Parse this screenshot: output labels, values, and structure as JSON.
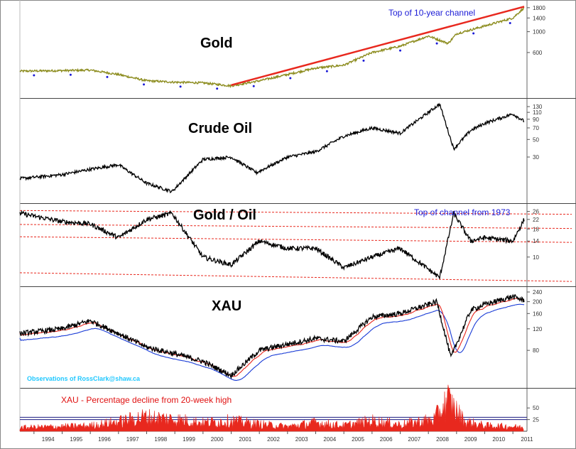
{
  "chart_data": [
    {
      "type": "line",
      "title": "Gold",
      "annotation": "Top of 10-year channel",
      "scale": "log",
      "y_ticks": [
        600,
        1000,
        1400,
        1800
      ],
      "colors": {
        "series": "#8c8c1e",
        "channel": "#e8281e",
        "markers": "#1a1ad6"
      },
      "x": [
        1993.5,
        1995,
        1996,
        1997,
        1998,
        1999,
        2000,
        2001,
        2002,
        2003,
        2004,
        2005,
        2006,
        2007,
        2008,
        2008.7,
        2009,
        2010,
        2011,
        2011.4
      ],
      "values": [
        380,
        385,
        390,
        350,
        300,
        290,
        285,
        265,
        300,
        350,
        410,
        440,
        600,
        700,
        900,
        750,
        950,
        1150,
        1400,
        1800
      ],
      "channel_line": {
        "x": [
          2001,
          2011.4
        ],
        "y": [
          270,
          1850
        ]
      }
    },
    {
      "type": "line",
      "title": "Crude Oil",
      "scale": "log",
      "y_ticks": [
        30,
        50,
        70,
        90,
        110,
        130
      ],
      "colors": {
        "series": "#000000"
      },
      "x": [
        1993.5,
        1995,
        1996,
        1997,
        1998,
        1998.9,
        2000,
        2001,
        2001.9,
        2003,
        2004,
        2005,
        2006,
        2007,
        2008.4,
        2008.9,
        2009.5,
        2010,
        2011,
        2011.4
      ],
      "values": [
        16,
        18,
        21,
        24,
        14,
        11,
        28,
        30,
        19,
        30,
        35,
        55,
        70,
        60,
        140,
        38,
        65,
        80,
        105,
        85
      ]
    },
    {
      "type": "line",
      "title": "Gold / Oil",
      "annotation": "Top of channel from 1973",
      "scale": "log",
      "y_ticks": [
        10,
        14,
        18,
        22,
        26
      ],
      "colors": {
        "series": "#000000",
        "channels": "#e8281e"
      },
      "x": [
        1993.5,
        1995,
        1996,
        1997,
        1998,
        1998.9,
        2000,
        2001,
        2002,
        2003,
        2004,
        2005,
        2006,
        2007,
        2008.4,
        2008.9,
        2009.5,
        2010,
        2011,
        2011.4
      ],
      "values": [
        25,
        21,
        20,
        15,
        22,
        25,
        10,
        8.5,
        14,
        12,
        12,
        8,
        10,
        12,
        6.5,
        25,
        14,
        15,
        14,
        22
      ]
    },
    {
      "type": "line",
      "title": "XAU",
      "annotation": "Observations of RossClark@shaw.ca",
      "scale": "log",
      "y_ticks": [
        80,
        120,
        160,
        200,
        240
      ],
      "colors": {
        "series": "#000000",
        "ma_short": "#e8281e",
        "ma_long": "#1a3cd6",
        "markers": "#1a1ad6"
      },
      "x": [
        1993.5,
        1995,
        1996,
        1997,
        1998,
        1999,
        2000,
        2001,
        2002,
        2003,
        2004,
        2005,
        2006,
        2007,
        2008.3,
        2008.8,
        2009.5,
        2010,
        2011,
        2011.4
      ],
      "values": [
        110,
        120,
        140,
        110,
        85,
        75,
        65,
        50,
        80,
        90,
        100,
        95,
        150,
        160,
        200,
        70,
        170,
        190,
        220,
        205
      ]
    },
    {
      "type": "area",
      "title": "XAU - Percentage decline from 20-week high",
      "y_ticks": [
        25,
        50
      ],
      "y_reference_lines": [
        25,
        30
      ],
      "colors": {
        "series": "#e8281e",
        "reference": "#1a1a80"
      },
      "x": [
        1993.5,
        1995,
        1996,
        1997,
        1997.9,
        1999,
        2000,
        2001,
        2002,
        2003,
        2004,
        2005,
        2006,
        2007,
        2008.2,
        2008.7,
        2009.3,
        2010,
        2011,
        2011.4
      ],
      "values": [
        8,
        10,
        12,
        20,
        30,
        25,
        18,
        22,
        15,
        10,
        18,
        12,
        22,
        14,
        25,
        65,
        20,
        12,
        10,
        8
      ]
    }
  ],
  "x_axis": {
    "labels": [
      "1994",
      "1995",
      "1996",
      "1997",
      "1998",
      "1999",
      "2000",
      "2001",
      "2002",
      "2003",
      "2004",
      "2005",
      "2006",
      "2007",
      "2008",
      "2009",
      "2010",
      "2011"
    ],
    "range": [
      1993.5,
      2011.5
    ]
  }
}
